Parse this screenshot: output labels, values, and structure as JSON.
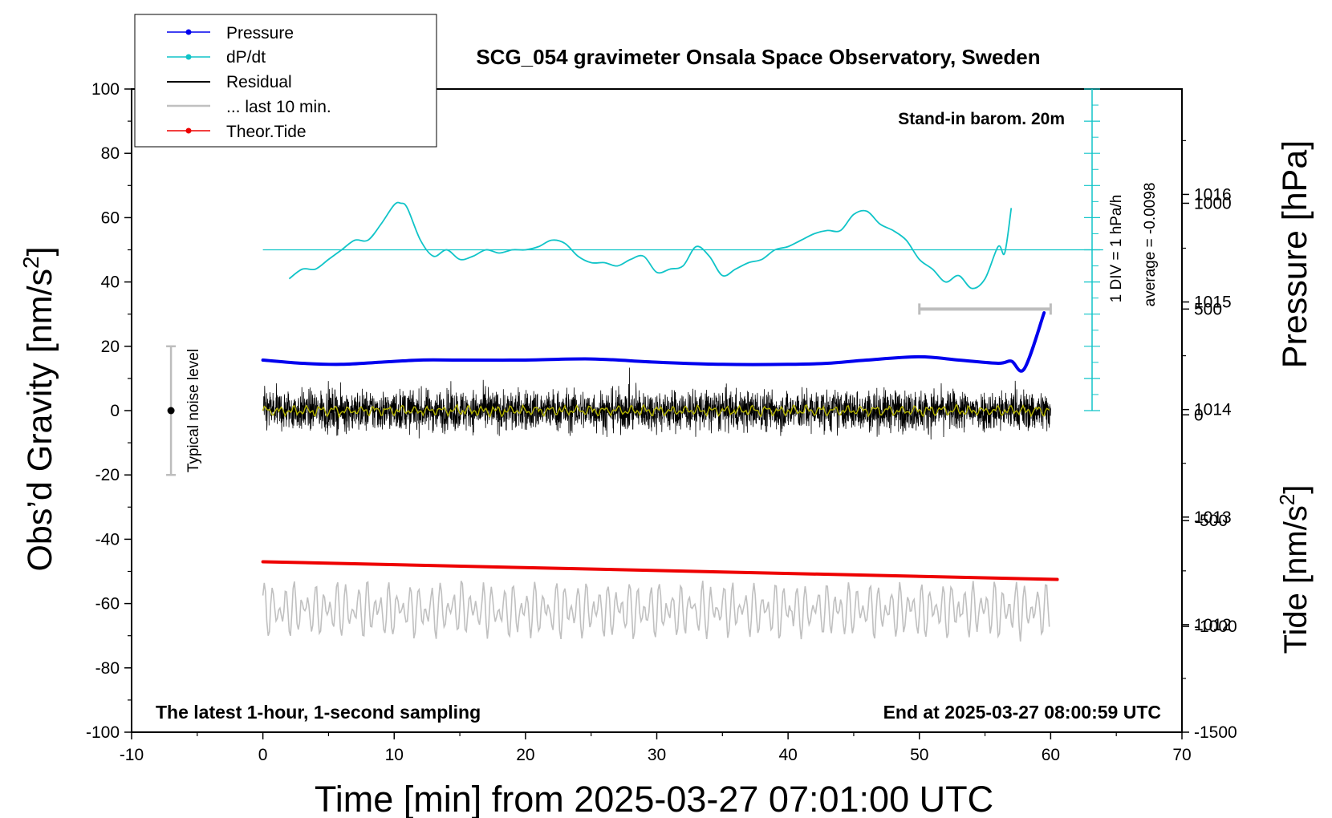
{
  "chart_data": {
    "type": "line",
    "title": "SCG_054 gravimeter Onsala Space Observatory, Sweden",
    "xlabel": "Time [min] from 2025-03-27 07:01:00 UTC",
    "ylabel_main": "Obs’d Gravity [nm/s",
    "ylabel_main_exp": "2",
    "ylabel_main_tail": "]",
    "ylabel_pressure": "Pressure [hPa]",
    "ylabel_tide": "Tide [nm/s",
    "ylabel_tide_exp": "2",
    "ylabel_tide_tail": "]",
    "xlim": [
      -10,
      70
    ],
    "ylim": [
      -100,
      100
    ],
    "x_ticks": [
      -10,
      0,
      10,
      20,
      30,
      40,
      50,
      60,
      70
    ],
    "y_ticks": [
      -100,
      -80,
      -60,
      -40,
      -20,
      0,
      20,
      40,
      60,
      80,
      100
    ],
    "pressure_axis": {
      "ylim": [
        1011.0,
        1016.98
      ],
      "ticks": [
        1012,
        1013,
        1014,
        1015,
        1016
      ]
    },
    "tide_axis": {
      "ylim": [
        -1500,
        1540
      ],
      "ticks": [
        -1500,
        -1000,
        -500,
        0,
        500,
        1000
      ]
    },
    "legend": {
      "placement": "top-left",
      "entries": [
        {
          "label": "Pressure",
          "color": "#0000ee",
          "style": "line-dot"
        },
        {
          "label": "dP/dt",
          "color": "#10c4c8",
          "style": "line-dot"
        },
        {
          "label": "Residual",
          "color": "#000000",
          "style": "line"
        },
        {
          "label": "... last 10 min.",
          "color": "#c0c0c0",
          "style": "line"
        },
        {
          "label": "Theor.Tide",
          "color": "#ee0000",
          "style": "line-dot"
        }
      ]
    },
    "annotations": {
      "barometer": "Stand-in barom. 20m",
      "div_label": "1 DIV = 1 hPa/h",
      "average_label": "average = -0.0098",
      "noise_label": "Typical noise level",
      "bottom_left": "The latest 1-hour, 1-second sampling",
      "bottom_right": "End at 2025-03-27 08:00:59 UTC"
    },
    "noise_bar": {
      "x": -7,
      "center": 0,
      "range": [
        -20,
        20
      ]
    },
    "last10_bar": {
      "x_range": [
        50,
        60
      ],
      "tide_value": 500
    },
    "series": [
      {
        "name": "Pressure",
        "color": "#0000ee",
        "axis": "pressure",
        "x": [
          0,
          3,
          6,
          9,
          12,
          15,
          20,
          25,
          30,
          35,
          40,
          43,
          46,
          50,
          53,
          56,
          57,
          58,
          59.5
        ],
        "values": [
          1014.46,
          1014.43,
          1014.42,
          1014.44,
          1014.46,
          1014.46,
          1014.46,
          1014.47,
          1014.44,
          1014.42,
          1014.42,
          1014.43,
          1014.46,
          1014.49,
          1014.46,
          1014.43,
          1014.45,
          1014.38,
          1014.9
        ]
      },
      {
        "name": "dP/dt",
        "color": "#10c4c8",
        "axis": "main",
        "x": [
          2,
          3,
          4,
          5,
          6,
          7,
          8,
          9,
          10,
          10.5,
          11,
          12,
          13,
          14,
          15,
          16,
          17,
          18,
          19,
          20,
          21,
          22,
          23,
          24,
          25,
          26,
          27,
          28,
          29,
          30,
          31,
          32,
          33,
          34,
          35,
          36,
          37,
          38,
          39,
          40,
          41,
          42,
          43,
          44,
          45,
          46,
          47,
          48,
          49,
          50,
          51,
          52,
          53,
          54,
          55,
          56,
          56.5,
          57
        ],
        "values": [
          41,
          44,
          44,
          47,
          50,
          53,
          53,
          58,
          64,
          64.5,
          63,
          53,
          48,
          50,
          47,
          48,
          50,
          49,
          50,
          50,
          51,
          53,
          52,
          48,
          46,
          46,
          45,
          47,
          48,
          43,
          44,
          45,
          51,
          48,
          42,
          44,
          46,
          47,
          50,
          51,
          53,
          55,
          56,
          56,
          61,
          62,
          58,
          56,
          53,
          47,
          44,
          40,
          42,
          38,
          41,
          51,
          49,
          63
        ]
      },
      {
        "name": "Residual",
        "color": "#000000",
        "axis": "main",
        "x_range": [
          0,
          60
        ],
        "typical_amplitude": [
          -12,
          12
        ],
        "peak_range": [
          -14,
          15
        ]
      },
      {
        "name": "Residual (smoothed)",
        "color": "#b4b400",
        "axis": "main",
        "x_range": [
          0,
          60
        ],
        "typical_amplitude": [
          -2,
          2
        ]
      },
      {
        "name": "... last 10 min.",
        "color": "#c0c0c0",
        "axis": "main",
        "x_range": [
          0,
          60
        ],
        "center": -62,
        "range": [
          -76,
          -52
        ]
      },
      {
        "name": "Theor.Tide",
        "color": "#ee0000",
        "axis": "main",
        "x": [
          0,
          60.5
        ],
        "values": [
          -47,
          -52.5
        ]
      }
    ]
  }
}
